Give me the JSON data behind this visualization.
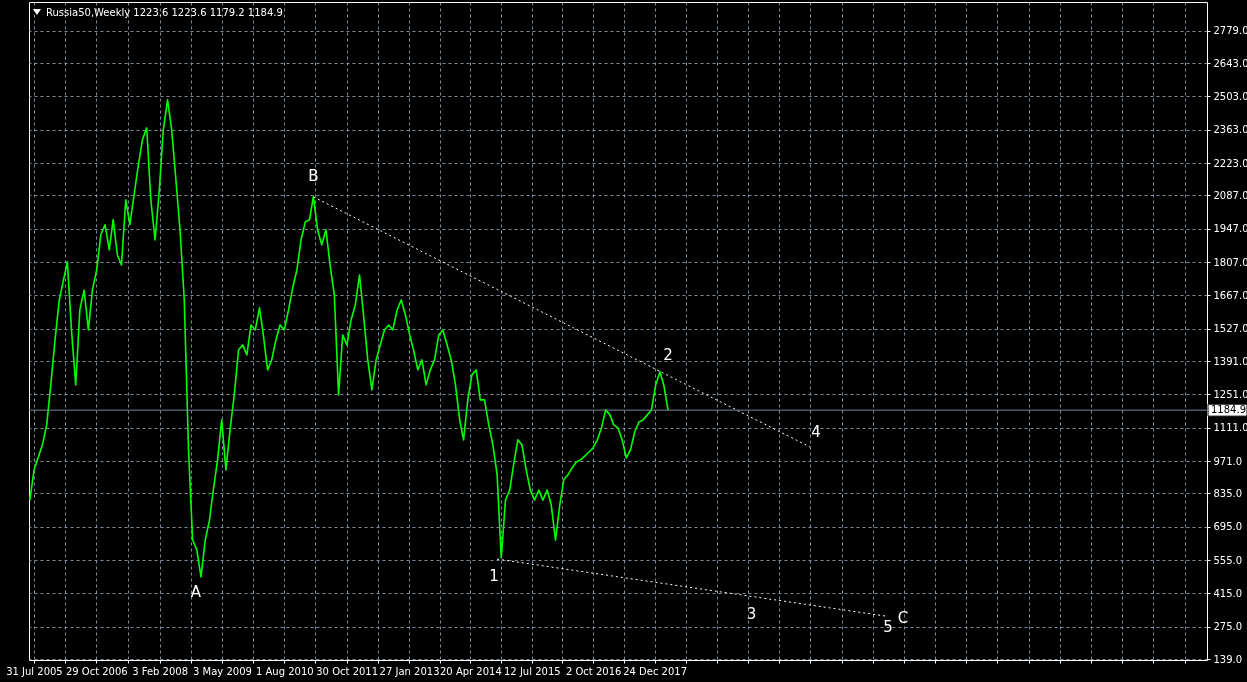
{
  "chart_data": {
    "type": "line",
    "title": "Russia50,Weekly  1223.6 1223.6 1179.2 1184.9",
    "grid": true,
    "xlim": [
      "2005-06-25",
      "2029-01-06"
    ],
    "xticks": [
      {
        "value": "2005-07-31",
        "label": "31 Jul 2005"
      },
      {
        "value": "2006-03-15",
        "label": null
      },
      {
        "value": "2006-10-29",
        "label": "29 Oct 2006"
      },
      {
        "value": "2007-06-17",
        "label": null
      },
      {
        "value": "2008-02-03",
        "label": "3 Feb 2008"
      },
      {
        "value": "2008-09-17",
        "label": null
      },
      {
        "value": "2009-05-03",
        "label": "3 May 2009"
      },
      {
        "value": "2009-12-16",
        "label": null
      },
      {
        "value": "2010-08-01",
        "label": "1 Aug 2010"
      },
      {
        "value": "2011-03-16",
        "label": null
      },
      {
        "value": "2011-10-30",
        "label": "30 Oct 2011"
      },
      {
        "value": "2012-06-13",
        "label": null
      },
      {
        "value": "2013-01-27",
        "label": "27 Jan 2013"
      },
      {
        "value": "2013-09-08",
        "label": null
      },
      {
        "value": "2014-04-20",
        "label": "20 Apr 2014"
      },
      {
        "value": "2014-11-30",
        "label": null
      },
      {
        "value": "2015-07-12",
        "label": "12 Jul 2015"
      },
      {
        "value": "2016-02-21",
        "label": null
      },
      {
        "value": "2016-10-02",
        "label": "2 Oct 2016"
      },
      {
        "value": "2017-05-14",
        "label": null
      },
      {
        "value": "2017-12-24",
        "label": "24 Dec 2017"
      },
      {
        "value": "2018-08-08",
        "label": null
      },
      {
        "value": "2019-03-24",
        "label": null
      },
      {
        "value": "2019-11-06",
        "label": null
      },
      {
        "value": "2020-06-21",
        "label": null
      },
      {
        "value": "2021-02-03",
        "label": null
      },
      {
        "value": "2021-09-19",
        "label": null
      },
      {
        "value": "2022-05-04",
        "label": null
      },
      {
        "value": "2022-12-18",
        "label": null
      },
      {
        "value": "2023-08-02",
        "label": null
      },
      {
        "value": "2024-03-17",
        "label": null
      },
      {
        "value": "2024-10-30",
        "label": null
      },
      {
        "value": "2025-06-15",
        "label": null
      },
      {
        "value": "2026-01-28",
        "label": null
      },
      {
        "value": "2026-09-13",
        "label": null
      },
      {
        "value": "2027-04-28",
        "label": null
      },
      {
        "value": "2027-12-12",
        "label": null
      },
      {
        "value": "2028-07-27",
        "label": null
      }
    ],
    "ylim": [
      135,
      2900
    ],
    "yticks": [
      {
        "value": 139,
        "label": "139.0"
      },
      {
        "value": 275,
        "label": "275.0"
      },
      {
        "value": 415,
        "label": "415.0"
      },
      {
        "value": 555,
        "label": "555.0"
      },
      {
        "value": 695,
        "label": "695.0"
      },
      {
        "value": 835,
        "label": "835.0"
      },
      {
        "value": 971,
        "label": "971.0"
      },
      {
        "value": 1111,
        "label": "1111.0"
      },
      {
        "value": 1251,
        "label": "1251.0"
      },
      {
        "value": 1391,
        "label": "1391.0"
      },
      {
        "value": 1527,
        "label": "1527.0"
      },
      {
        "value": 1667,
        "label": "1667.0"
      },
      {
        "value": 1807,
        "label": "1807.0"
      },
      {
        "value": 1947,
        "label": "1947.0"
      },
      {
        "value": 2087,
        "label": "2087.0"
      },
      {
        "value": 2223,
        "label": "2223.0"
      },
      {
        "value": 2363,
        "label": "2363.0"
      },
      {
        "value": 2503,
        "label": "2503.0"
      },
      {
        "value": 2643,
        "label": "2643.0"
      },
      {
        "value": 2779,
        "label": "2779.0"
      }
    ],
    "series": [
      {
        "color": "#00ff00",
        "x": [
          "2005-07",
          "2005-08",
          "2005-10",
          "2005-11",
          "2005-12",
          "2006-01",
          "2006-02",
          "2006-04",
          "2006-05",
          "2006-06",
          "2006-07",
          "2006-08",
          "2006-09",
          "2006-10",
          "2006-11",
          "2006-12",
          "2007-01",
          "2007-02",
          "2007-03",
          "2007-04",
          "2007-05",
          "2007-06",
          "2007-07",
          "2007-08",
          "2007-09",
          "2007-10",
          "2007-11",
          "2007-12",
          "2008-01",
          "2008-02",
          "2008-03",
          "2008-04",
          "2008-05",
          "2008-06",
          "2008-07",
          "2008-08",
          "2008-09",
          "2008-10",
          "2008-11",
          "2008-12",
          "2009-01",
          "2009-02",
          "2009-03",
          "2009-04",
          "2009-05",
          "2009-06",
          "2009-07",
          "2009-08",
          "2009-09",
          "2009-10",
          "2009-11",
          "2009-12",
          "2010-01",
          "2010-02",
          "2010-03",
          "2010-04",
          "2010-05",
          "2010-06",
          "2010-07",
          "2010-08",
          "2010-09",
          "2010-10",
          "2010-11",
          "2010-12",
          "2011-01",
          "2011-02",
          "2011-03",
          "2011-04",
          "2011-05",
          "2011-06",
          "2011-07",
          "2011-08",
          "2011-09",
          "2011-10",
          "2011-11",
          "2011-12",
          "2012-01",
          "2012-02",
          "2012-03",
          "2012-04",
          "2012-05",
          "2012-06",
          "2012-07",
          "2012-08",
          "2012-09",
          "2012-10",
          "2012-11",
          "2012-12",
          "2013-01",
          "2013-02",
          "2013-03",
          "2013-04",
          "2013-05",
          "2013-06",
          "2013-07",
          "2013-08",
          "2013-09",
          "2013-10",
          "2013-11",
          "2013-12",
          "2014-01",
          "2014-02",
          "2014-03",
          "2014-04",
          "2014-05",
          "2014-06",
          "2014-07",
          "2014-08",
          "2014-09",
          "2014-10",
          "2014-11",
          "2014-12",
          "2015-01",
          "2015-02",
          "2015-03",
          "2015-04",
          "2015-05",
          "2015-06",
          "2015-07",
          "2015-08",
          "2015-09",
          "2015-10",
          "2015-11",
          "2015-12",
          "2016-01",
          "2016-02",
          "2016-03",
          "2016-04",
          "2016-05",
          "2016-06",
          "2016-07",
          "2016-08",
          "2016-09",
          "2016-10",
          "2016-11",
          "2016-12",
          "2017-01",
          "2017-02",
          "2017-03",
          "2017-04",
          "2017-05",
          "2017-06",
          "2017-07",
          "2017-08",
          "2017-09",
          "2017-10",
          "2017-11",
          "2017-12",
          "2018-01",
          "2018-02",
          "2018-03",
          "2018-04"
        ],
        "values": [
          807,
          934,
          1039,
          1123,
          1291,
          1480,
          1648,
          1808,
          1522,
          1291,
          1606,
          1690,
          1522,
          1690,
          1774,
          1922,
          1964,
          1858,
          1985,
          1837,
          1795,
          2069,
          1964,
          2090,
          2216,
          2321,
          2371,
          2069,
          1900,
          2111,
          2363,
          2489,
          2363,
          2153,
          1943,
          1648,
          1018,
          639,
          597,
          484,
          639,
          723,
          849,
          976,
          1144,
          934,
          1102,
          1249,
          1438,
          1459,
          1417,
          1543,
          1522,
          1615,
          1501,
          1354,
          1396,
          1480,
          1543,
          1522,
          1606,
          1699,
          1774,
          1900,
          1976,
          1985,
          2081,
          1943,
          1880,
          1943,
          1795,
          1669,
          1249,
          1501,
          1459,
          1564,
          1627,
          1753,
          1585,
          1396,
          1270,
          1396,
          1459,
          1522,
          1543,
          1522,
          1606,
          1648,
          1585,
          1501,
          1438,
          1354,
          1396,
          1291,
          1354,
          1396,
          1501,
          1522,
          1459,
          1396,
          1291,
          1144,
          1060,
          1228,
          1333,
          1354,
          1228,
          1228,
          1123,
          1039,
          913,
          564,
          807,
          849,
          955,
          1060,
          1039,
          934,
          849,
          807,
          849,
          807,
          849,
          786,
          639,
          786,
          892,
          913,
          942,
          967,
          976,
          992,
          1009,
          1026,
          1060,
          1110,
          1186,
          1165,
          1123,
          1110,
          1060,
          984,
          1018,
          1093,
          1135,
          1144,
          1165,
          1186,
          1291,
          1346,
          1291,
          1185
        ]
      },
      {
        "type": "line",
        "color": "#ffffff",
        "line_style": "dotted",
        "x": [
          "2011-03",
          "2021-02"
        ],
        "values": [
          2081,
          1030
        ]
      },
      {
        "type": "line",
        "color": "#ffffff",
        "line_style": "dotted",
        "x": [
          "2014-11",
          "2022-08"
        ],
        "values": [
          559,
          320
        ]
      }
    ],
    "ref_lines": [
      {
        "axis": "y",
        "value": 1184.9,
        "label": "1184.9",
        "color": "#778899"
      }
    ],
    "annotations": [
      {
        "text": "A",
        "x": "2008-12",
        "y": 484
      },
      {
        "text": "B",
        "x": "2011-03",
        "y": 2081
      },
      {
        "text": "1",
        "x": "2014-11",
        "y": 559
      },
      {
        "text": "2",
        "x": "2018-02",
        "y": 1346
      },
      {
        "text": "3",
        "x": "2019-12",
        "y": 402
      },
      {
        "text": "4",
        "x": "2021-02",
        "y": 1030
      },
      {
        "text": "5",
        "x": "2022-08",
        "y": 320
      },
      {
        "text": "C",
        "x": "2022-08",
        "y": 320
      }
    ]
  }
}
